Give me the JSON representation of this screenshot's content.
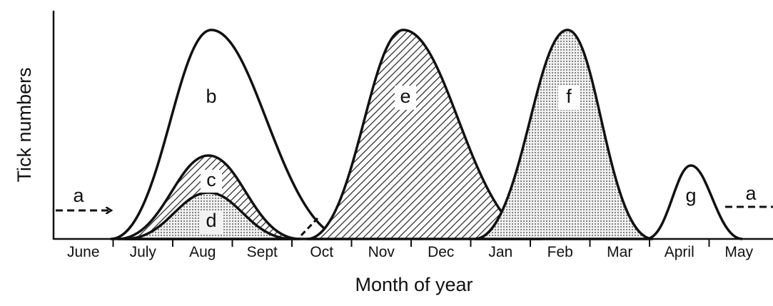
{
  "axes": {
    "y_label": "Tick numbers",
    "x_label": "Month of year"
  },
  "months": [
    "June",
    "July",
    "Aug",
    "Sept",
    "Oct",
    "Nov",
    "Dec",
    "Jan",
    "Feb",
    "Mar",
    "April",
    "May"
  ],
  "curve_labels": [
    "a",
    "b",
    "c",
    "d",
    "e",
    "f",
    "g"
  ]
}
